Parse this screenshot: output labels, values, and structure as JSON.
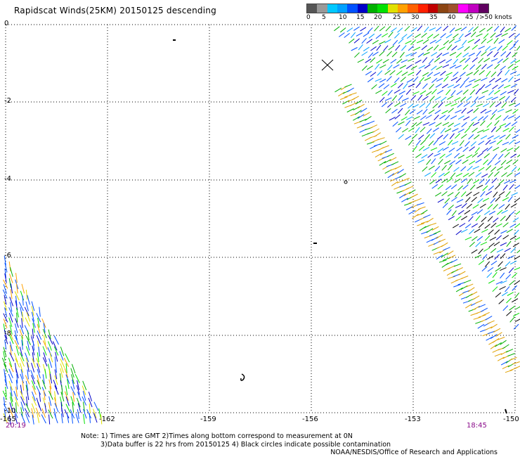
{
  "title": "Rapidscat Winds(25KM) 20150125 descending",
  "legend": {
    "colors": [
      "#555555",
      "#999999",
      "#00c8ff",
      "#00a0ff",
      "#0050ff",
      "#0000c8",
      "#00b000",
      "#00e000",
      "#e0e000",
      "#ffa000",
      "#ff6000",
      "#ff2000",
      "#c00000",
      "#8b4513",
      "#a0522d",
      "#ff00ff",
      "#c000c0",
      "#600060"
    ],
    "labels": [
      "0",
      "5",
      "10",
      "15",
      "20",
      "25",
      "30",
      "35",
      "40",
      "45",
      "/",
      ">50 knots"
    ]
  },
  "axes": {
    "lat_labels": [
      "0",
      "-2",
      "-4",
      "-6",
      "-8",
      "-10"
    ],
    "lon_labels": [
      "-165",
      "-162",
      "-159",
      "-156",
      "-153",
      "-150"
    ]
  },
  "times": {
    "left": "20:19",
    "right": "18:45"
  },
  "notes": [
    "Note: 1) Times are GMT 2)Times along bottom correspond to measurement at 0N",
    "3)Data buffer is 22 hrs from 20150125 4) Black circles indicate possible contamination"
  ],
  "credit": "NOAA/NESDIS/Office of Research and Applications"
}
